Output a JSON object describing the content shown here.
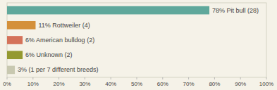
{
  "chart_data": {
    "type": "bar",
    "orientation": "horizontal",
    "categories": [
      "78% Pit bull (28)",
      "11% Rottweiler (4)",
      "6% American bulldog (2)",
      "6% Unknown (2)",
      "3% (1 per 7 different breeds)"
    ],
    "values": [
      78,
      11,
      6,
      6,
      3
    ],
    "colors": [
      "#5fa89b",
      "#d4903a",
      "#d4725a",
      "#949930",
      "#c8c8b0"
    ],
    "xlim": [
      0,
      100
    ],
    "xticks": [
      {
        "value": 0,
        "label": "0%"
      },
      {
        "value": 10,
        "label": "10%"
      },
      {
        "value": 20,
        "label": "20%"
      },
      {
        "value": 30,
        "label": "30%"
      },
      {
        "value": 40,
        "label": "40%"
      },
      {
        "value": 50,
        "label": "50%"
      },
      {
        "value": 60,
        "label": "60%"
      },
      {
        "value": 70,
        "label": "70%"
      },
      {
        "value": 80,
        "label": "80%"
      },
      {
        "value": 90,
        "label": "90%"
      },
      {
        "value": 100,
        "label": "100%"
      }
    ],
    "grid": false
  }
}
